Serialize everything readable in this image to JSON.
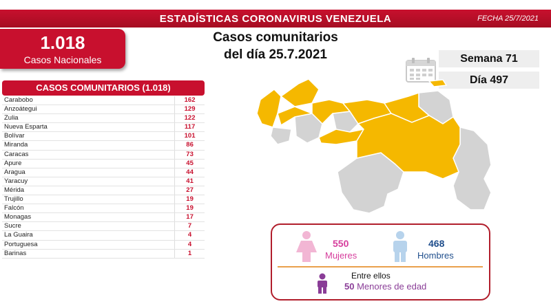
{
  "banner": {
    "title": "ESTADÍSTICAS CORONAVIRUS VENEZUELA",
    "date": "FECHA 25/7/2021"
  },
  "total": {
    "value": "1.018",
    "label": "Casos Nacionales"
  },
  "heading": {
    "line1": "Casos comunitarios",
    "line2": "del día 25.7.2021"
  },
  "week": "Semana 71",
  "day": "Día 497",
  "table": {
    "header": "CASOS COMUNITARIOS (1.018)",
    "rows": [
      {
        "name": "Carabobo",
        "value": "162"
      },
      {
        "name": "Anzoátegui",
        "value": "129"
      },
      {
        "name": "Zulia",
        "value": "122"
      },
      {
        "name": "Nueva Esparta",
        "value": "117"
      },
      {
        "name": "Bolívar",
        "value": "101"
      },
      {
        "name": "Miranda",
        "value": "86"
      },
      {
        "name": "Caracas",
        "value": "73"
      },
      {
        "name": "Apure",
        "value": "45"
      },
      {
        "name": "Aragua",
        "value": "44"
      },
      {
        "name": "Yaracuy",
        "value": "41"
      },
      {
        "name": "Mérida",
        "value": "27"
      },
      {
        "name": "Trujillo",
        "value": "19"
      },
      {
        "name": "Falcón",
        "value": "19"
      },
      {
        "name": "Monagas",
        "value": "17"
      },
      {
        "name": "Sucre",
        "value": "7"
      },
      {
        "name": "La Guaira",
        "value": "4"
      },
      {
        "name": "Portuguesa",
        "value": "4"
      },
      {
        "name": "Barinas",
        "value": "1"
      }
    ]
  },
  "gender": {
    "women_count": "550",
    "women_label": "Mujeres",
    "men_count": "468",
    "men_label": "Hombres",
    "among_label": "Entre ellos",
    "minors_count": "50",
    "minors_label": "Menores de edad"
  },
  "colors": {
    "brand_red": "#c8102e",
    "map_highlight": "#f5b800",
    "map_other": "#d3d3d3",
    "women": "#d63d9c",
    "men": "#1f4e8c",
    "minors": "#8a3d97"
  },
  "icons": [
    "calendar-icon",
    "woman-icon",
    "man-icon",
    "child-icon"
  ]
}
